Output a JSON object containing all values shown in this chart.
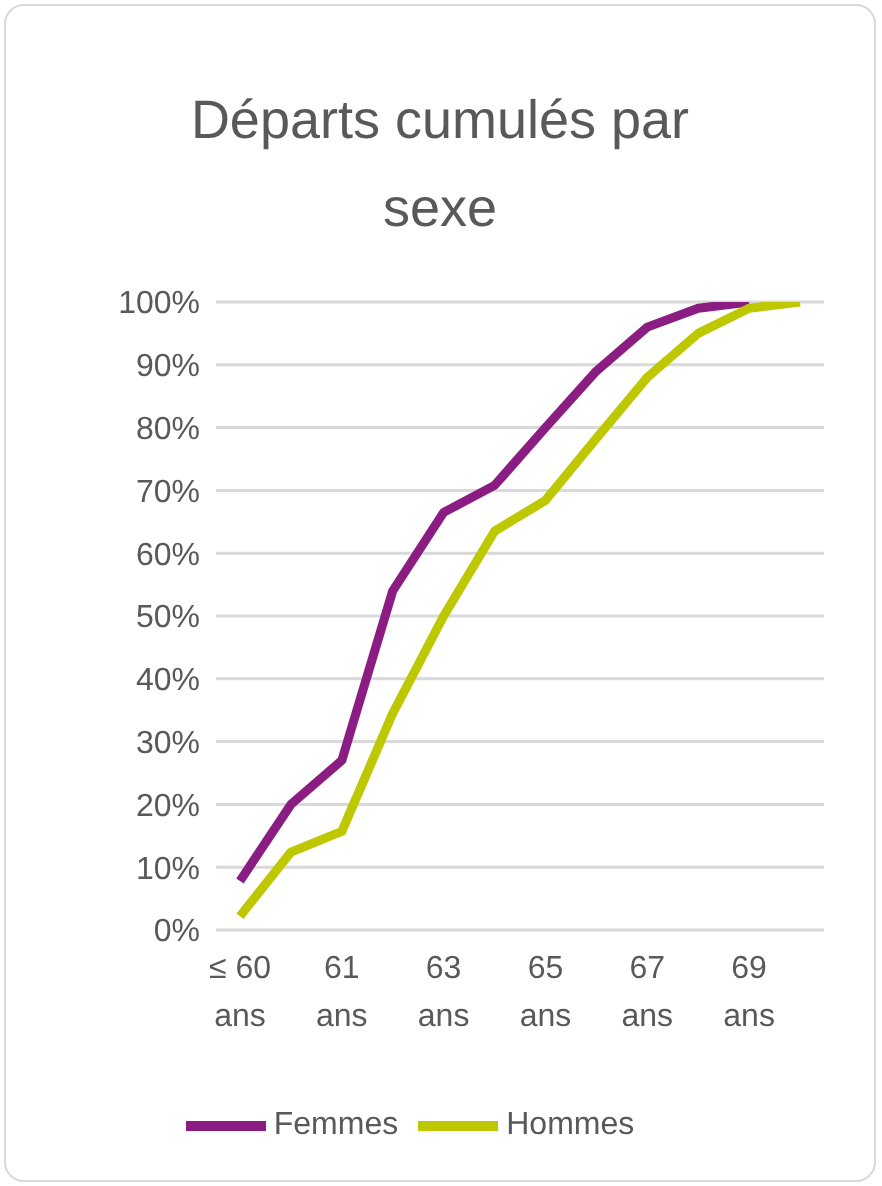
{
  "chart_data": {
    "type": "line",
    "title": "Départs cumulés par sexe",
    "categories": [
      "≤ 60 ans",
      null,
      "61 ans",
      null,
      "63 ans",
      null,
      "65 ans",
      null,
      "67 ans",
      null,
      "69 ans",
      null
    ],
    "series": [
      {
        "name": "Femmes",
        "color": "#8b1d82",
        "values": [
          7.8,
          20,
          27,
          54,
          66.5,
          70.8,
          80,
          89,
          96,
          99,
          100,
          null
        ]
      },
      {
        "name": "Hommes",
        "color": "#bdc800",
        "values": [
          2.2,
          12.4,
          15.7,
          34.5,
          50,
          63.5,
          68.4,
          78.3,
          88,
          95,
          99,
          100
        ]
      }
    ],
    "ylim": [
      0,
      100
    ],
    "yticks": [
      {
        "value": 0,
        "label": "0%"
      },
      {
        "value": 10,
        "label": "10%"
      },
      {
        "value": 20,
        "label": "20%"
      },
      {
        "value": 30,
        "label": "30%"
      },
      {
        "value": 40,
        "label": "40%"
      },
      {
        "value": 50,
        "label": "50%"
      },
      {
        "value": 60,
        "label": "60%"
      },
      {
        "value": 70,
        "label": "70%"
      },
      {
        "value": 80,
        "label": "80%"
      },
      {
        "value": 90,
        "label": "90%"
      },
      {
        "value": 100,
        "label": "100%"
      }
    ],
    "grid": "y",
    "legend": "bottom",
    "marker": "none",
    "line_style": "solid"
  }
}
